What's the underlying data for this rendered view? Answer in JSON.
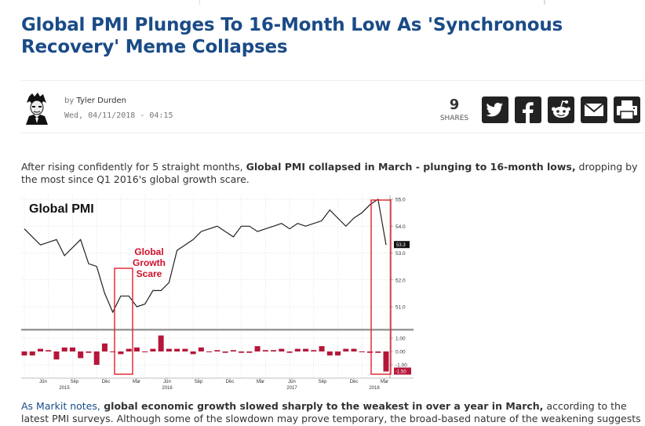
{
  "headline": "Global PMI Plunges To 16-Month Low As 'Synchronous Recovery' Meme Collapses",
  "byline": {
    "by": "by",
    "author": "Tyler Durden",
    "date": "Wed, 04/11/2018 - 04:15"
  },
  "shares": {
    "count": "9",
    "label": "SHARES"
  },
  "social": {
    "twitter_icon": "twitter-icon",
    "facebook_icon": "facebook-icon",
    "reddit_icon": "reddit-icon",
    "email_icon": "email-icon",
    "print_icon": "print-icon"
  },
  "para1": {
    "t1": "After rising confidently for 5 straight months, ",
    "b1": "Global PMI collapsed in March - plunging to 16-month lows,",
    "t2": " dropping by the most since Q1 2016's global growth scare."
  },
  "para2": {
    "link": "As Markit notes,",
    "b1": " global economic growth slowed sharply to the weakest in over a year in March,",
    "t1": " according to the latest PMI surveys. Although some of the slowdown may prove temporary, the broad-based nature of the weakening suggests"
  },
  "chart_data": {
    "type": "line",
    "title": "Global PMI",
    "annotation": "Global Growth Scare",
    "line_series": {
      "values": [
        53.9,
        53.6,
        53.3,
        53.4,
        53.5,
        52.9,
        53.2,
        53.5,
        52.6,
        52.5,
        51.5,
        50.8,
        51.4,
        51.4,
        51.0,
        51.1,
        51.6,
        51.6,
        51.9,
        53.1,
        53.3,
        53.5,
        53.8,
        53.9,
        54.0,
        53.8,
        53.6,
        54.0,
        54.0,
        53.8,
        53.9,
        54.0,
        54.1,
        53.9,
        54.1,
        54.0,
        54.1,
        54.2,
        54.6,
        54.3,
        54.0,
        54.3,
        54.5,
        54.8,
        55.0,
        53.3
      ]
    },
    "bar_series": {
      "values": [
        -0.3,
        -0.3,
        0.2,
        0.1,
        -0.6,
        0.3,
        0.3,
        -0.5,
        -0.1,
        -1.0,
        0.6,
        0.0,
        -0.2,
        0.2,
        0.3,
        0.0,
        0.2,
        1.2,
        0.2,
        0.2,
        0.2,
        -0.2,
        0.3,
        0.0,
        0.1,
        -0.1,
        0.1,
        -0.1,
        -0.1,
        0.4,
        0.1,
        0.1,
        0.2,
        -0.1,
        0.2,
        0.2,
        0.1,
        0.4,
        -0.3,
        -0.3,
        0.2,
        0.2,
        0.0,
        -0.1,
        -0.1,
        -1.5
      ]
    },
    "right_axis_top": [
      "55.0",
      "54.0",
      "53.0",
      "52.0",
      "51.0"
    ],
    "right_axis_bottom": [
      "1.00",
      "0.00",
      "-1.00"
    ],
    "last_value_line": "53.3",
    "last_value_bar": "-1.50",
    "x_months": [
      "Jun",
      "Sep",
      "Dec",
      "Mar",
      "Jun",
      "Sep",
      "Dec",
      "Mar",
      "Jun",
      "Sep",
      "Dec",
      "Mar"
    ],
    "x_years": [
      "2015",
      "2016",
      "2017",
      "2018"
    ],
    "colors": {
      "line": "#222222",
      "bar": "#b5173a",
      "box": "#e0202a",
      "label": "#d0102a"
    }
  }
}
